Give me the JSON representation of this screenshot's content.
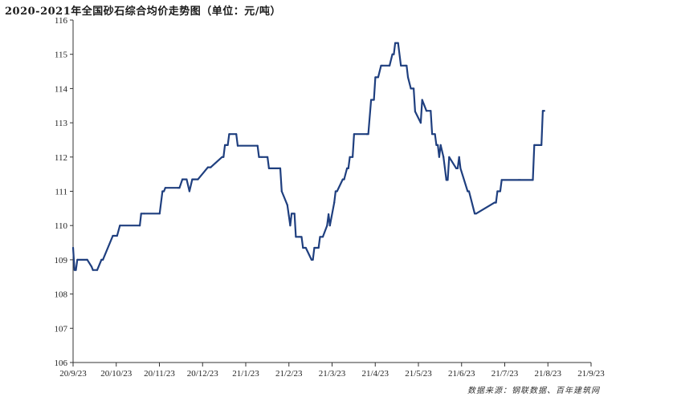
{
  "chart_data": {
    "type": "line",
    "title": "2020-2021年全国砂石综合均价走势图（单位：元/吨）",
    "source": "数据来源：钢联数据、百年建筑网",
    "xlabel": "",
    "ylabel": "",
    "ylim": [
      106,
      116
    ],
    "yticks": [
      106,
      107,
      108,
      109,
      110,
      111,
      112,
      113,
      114,
      115,
      116
    ],
    "xlim": [
      "2020-09-23",
      "2021-09-23"
    ],
    "xticks": [
      "20/9/23",
      "20/10/23",
      "20/11/23",
      "20/12/23",
      "21/1/23",
      "21/2/23",
      "21/3/23",
      "21/4/23",
      "21/5/23",
      "21/6/23",
      "21/7/23",
      "21/8/23",
      "21/9/23"
    ],
    "grid": false,
    "legend": "none",
    "line_color": "#1f3f7f",
    "series": [
      {
        "x": [
          "2020-09-23",
          "2020-09-24",
          "2020-09-25",
          "2020-09-26",
          "2020-10-03",
          "2020-10-06",
          "2020-10-07",
          "2020-10-10",
          "2020-10-13",
          "2020-10-14",
          "2020-10-21",
          "2020-10-22",
          "2020-10-24",
          "2020-10-26",
          "2020-11-09",
          "2020-11-10",
          "2020-11-12",
          "2020-11-23",
          "2020-11-25",
          "2020-11-26",
          "2020-11-27",
          "2020-12-06",
          "2020-12-07",
          "2020-12-09",
          "2020-12-12",
          "2020-12-14",
          "2020-12-16",
          "2020-12-17",
          "2020-12-20",
          "2020-12-27",
          "2020-12-29",
          "2021-01-06",
          "2021-01-07",
          "2021-01-08",
          "2021-01-10",
          "2021-01-11",
          "2021-01-16",
          "2021-01-17",
          "2021-01-31",
          "2021-02-01",
          "2021-02-03",
          "2021-02-07",
          "2021-02-08",
          "2021-02-16",
          "2021-02-17",
          "2021-02-21",
          "2021-02-22",
          "2021-02-23",
          "2021-02-24",
          "2021-02-25",
          "2021-02-26",
          "2021-02-27",
          "2021-03-01",
          "2021-03-02",
          "2021-03-03",
          "2021-03-04",
          "2021-03-06",
          "2021-03-10",
          "2021-03-11",
          "2021-03-12",
          "2021-03-13",
          "2021-03-15",
          "2021-03-16",
          "2021-03-18",
          "2021-03-21",
          "2021-03-22",
          "2021-03-23",
          "2021-03-26",
          "2021-03-27",
          "2021-03-28",
          "2021-04-01",
          "2021-04-02",
          "2021-04-04",
          "2021-04-05",
          "2021-04-06",
          "2021-04-08",
          "2021-04-09",
          "2021-04-18",
          "2021-04-19",
          "2021-04-21",
          "2021-04-23",
          "2021-04-24",
          "2021-04-25",
          "2021-04-26",
          "2021-04-28",
          "2021-04-29",
          "2021-05-04",
          "2021-05-06",
          "2021-05-07",
          "2021-05-08",
          "2021-05-09",
          "2021-05-10",
          "2021-05-12",
          "2021-05-15",
          "2021-05-16",
          "2021-05-17",
          "2021-05-19",
          "2021-05-21",
          "2021-05-22",
          "2021-05-26",
          "2021-05-27",
          "2021-05-30",
          "2021-06-02",
          "2021-06-03",
          "2021-06-05",
          "2021-06-06",
          "2021-06-07",
          "2021-06-08",
          "2021-06-09",
          "2021-06-11",
          "2021-06-12",
          "2021-06-13",
          "2021-06-14",
          "2021-06-15",
          "2021-06-20",
          "2021-06-21",
          "2021-06-22",
          "2021-06-23",
          "2021-06-28",
          "2021-06-29",
          "2021-07-03",
          "2021-07-04",
          "2021-07-17",
          "2021-07-18",
          "2021-07-19",
          "2021-07-21",
          "2021-07-22",
          "2021-08-03",
          "2021-08-04",
          "2021-08-13",
          "2021-08-14",
          "2021-08-19",
          "2021-08-20",
          "2021-08-21"
        ],
        "values": [
          109.35,
          108.7,
          108.7,
          109.0,
          109.0,
          108.8,
          108.7,
          108.7,
          109.0,
          109.0,
          109.7,
          109.7,
          109.7,
          110.0,
          110.0,
          110.35,
          110.35,
          110.35,
          111.0,
          111.0,
          111.1,
          111.1,
          111.1,
          111.35,
          111.35,
          111.0,
          111.35,
          111.35,
          111.35,
          111.7,
          111.7,
          112.0,
          112.0,
          112.35,
          112.35,
          112.67,
          112.67,
          112.33,
          112.33,
          112.0,
          112.0,
          112.0,
          111.67,
          111.67,
          111.0,
          110.6,
          110.3,
          110.0,
          110.35,
          110.35,
          110.35,
          109.67,
          109.67,
          109.67,
          109.67,
          109.35,
          109.35,
          109.0,
          109.0,
          109.35,
          109.35,
          109.35,
          109.67,
          109.67,
          110.0,
          110.33,
          110.0,
          110.67,
          111.0,
          111.0,
          111.35,
          111.35,
          111.67,
          111.67,
          112.0,
          112.0,
          112.67,
          112.67,
          112.67,
          113.67,
          113.67,
          114.33,
          114.33,
          114.33,
          114.67,
          114.67,
          114.67,
          115.0,
          115.0,
          115.33,
          115.33,
          115.33,
          114.67,
          114.67,
          114.67,
          114.33,
          114.0,
          114.0,
          113.33,
          113.0,
          113.67,
          113.35,
          113.35,
          112.67,
          112.67,
          112.35,
          112.35,
          112.0,
          112.35,
          112.0,
          111.67,
          111.33,
          111.33,
          112.0,
          111.67,
          111.67,
          112.0,
          111.67,
          111.0,
          111.0,
          110.35,
          110.35,
          110.67,
          110.67,
          111.0,
          111.0,
          111.33,
          111.33,
          111.33,
          111.33,
          112.35,
          112.35,
          113.35,
          113.35
        ]
      }
    ]
  }
}
